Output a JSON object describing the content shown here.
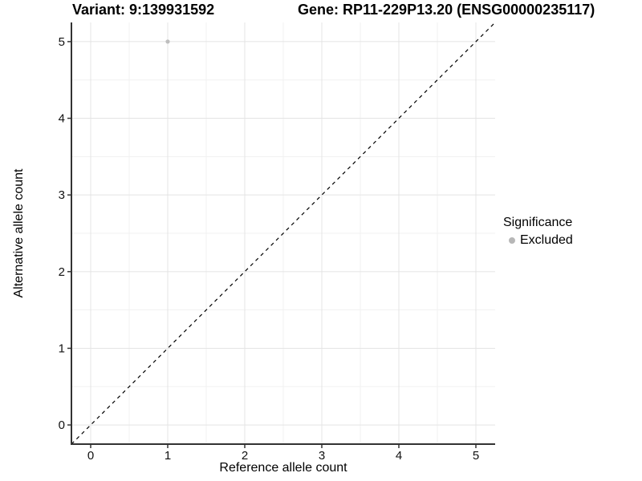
{
  "header": {
    "variant_title": "Variant: 9:139931592",
    "gene_title": "Gene: RP11-229P13.20 (ENSG00000235117)"
  },
  "legend": {
    "title": "Significance",
    "items": [
      {
        "label": "Excluded",
        "color": "#b7b7b7"
      }
    ]
  },
  "chart_data": {
    "type": "scatter",
    "titles": [
      "Variant: 9:139931592",
      "Gene: RP11-229P13.20 (ENSG00000235117)"
    ],
    "xlabel": "Reference allele count",
    "ylabel": "Alternative allele count",
    "xlim": [
      -0.25,
      5.25
    ],
    "ylim": [
      -0.25,
      5.25
    ],
    "xticks": [
      0,
      1,
      2,
      3,
      4,
      5
    ],
    "yticks": [
      0,
      1,
      2,
      3,
      4,
      5
    ],
    "minor_gridlines": [
      0.5,
      1.5,
      2.5,
      3.5,
      4.5
    ],
    "grid": "major+minor",
    "legend_position": "right",
    "legend_title": "Significance",
    "series": [
      {
        "name": "Excluded",
        "color": "#bebebe",
        "points": [
          {
            "x": 1,
            "y": 5
          }
        ]
      }
    ],
    "reference_line": {
      "slope": 1,
      "intercept": 0,
      "style": "dashed",
      "color": "#000000"
    }
  },
  "style": {
    "major_grid_color": "#e4e4e4",
    "minor_grid_color": "#f1f1f1",
    "axis_line_color": "#333333",
    "tick_mark_color": "#333333",
    "tick_label_color": "#111111",
    "point_color": "#bebebe",
    "dash_color": "#000000"
  }
}
